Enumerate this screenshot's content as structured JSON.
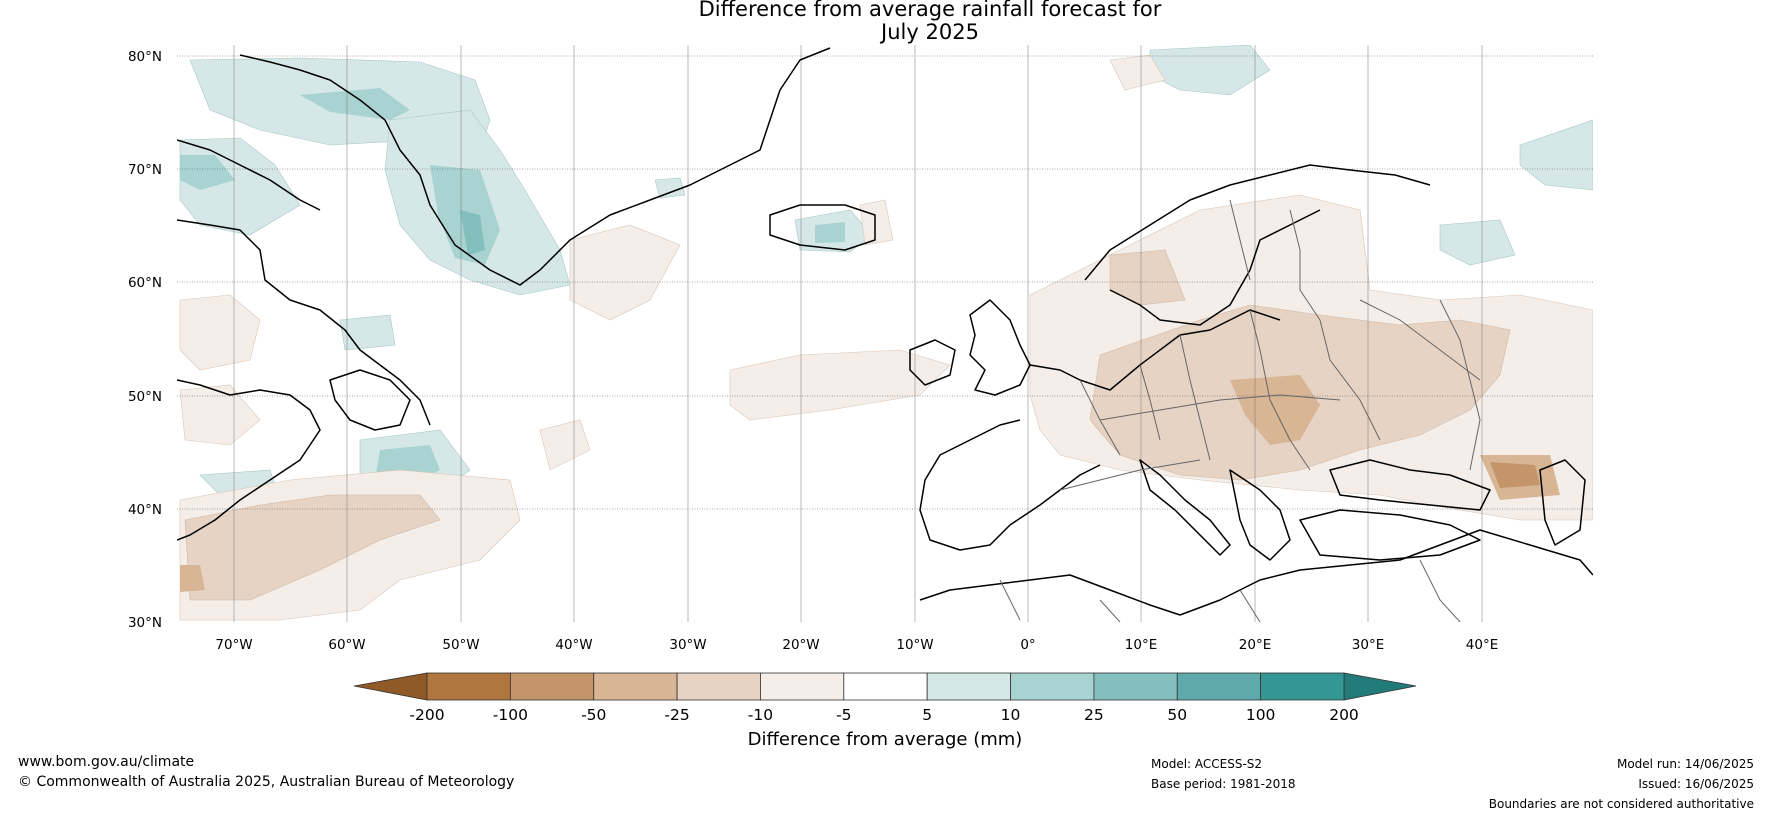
{
  "title_line1": "Difference from average rainfall forecast for",
  "title_line2": "July 2025",
  "lat_labels": [
    "80°N",
    "70°N",
    "60°N",
    "50°N",
    "40°N",
    "30°N"
  ],
  "lon_labels": [
    "70°W",
    "60°W",
    "50°W",
    "40°W",
    "30°W",
    "20°W",
    "10°W",
    "0°",
    "10°E",
    "20°E",
    "30°E",
    "40°E"
  ],
  "colorbar": {
    "ticks": [
      "-200",
      "-100",
      "-50",
      "-25",
      "-10",
      "-5",
      "5",
      "10",
      "25",
      "50",
      "100",
      "200"
    ],
    "colors": [
      "#8f5a27",
      "#b07640",
      "#c49569",
      "#d7b595",
      "#e6d3c3",
      "#f4ede8",
      "#ffffff",
      "#d5e8e7",
      "#a8d3d1",
      "#82bfbd",
      "#5eaaaa",
      "#359795",
      "#237b79"
    ],
    "title": "Difference from average (mm)"
  },
  "footer": {
    "website": "www.bom.gov.au/climate",
    "copyright": "© Commonwealth of Australia 2025, Australian Bureau of Meteorology",
    "model": "Model: ACCESS-S2",
    "base_period": "Base period: 1981-2018",
    "model_run": "Model run: 14/06/2025",
    "issued": "Issued: 16/06/2025",
    "disclaimer": "Boundaries are not considered authoritative"
  }
}
